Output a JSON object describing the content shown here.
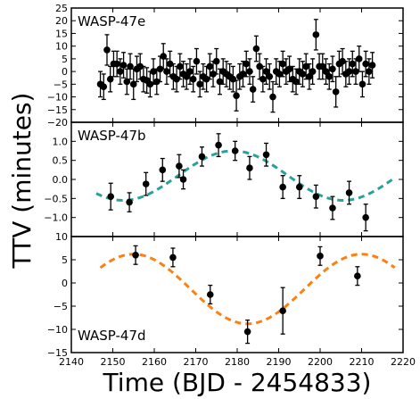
{
  "chart_data": {
    "type": "scatter",
    "xlabel": "Time (BJD - 2454833)",
    "ylabel": "TTV (minutes)",
    "xlim": [
      2140,
      2220
    ],
    "xticks": [
      2140,
      2150,
      2160,
      2170,
      2180,
      2190,
      2200,
      2210,
      2220
    ],
    "panels": [
      {
        "label": "WASP-47e",
        "ylim": [
          -20,
          25
        ],
        "yticks": [
          -20,
          -15,
          -10,
          -5,
          0,
          5,
          10,
          15,
          20,
          25
        ],
        "errorbar_color": "#000000",
        "points": [
          {
            "x": 2147.0,
            "y": -5,
            "err": 5
          },
          {
            "x": 2147.8,
            "y": -6,
            "err": 5
          },
          {
            "x": 2148.6,
            "y": 8.5,
            "err": 6
          },
          {
            "x": 2149.4,
            "y": -3,
            "err": 5
          },
          {
            "x": 2150.2,
            "y": 3,
            "err": 5
          },
          {
            "x": 2151.0,
            "y": 3,
            "err": 5
          },
          {
            "x": 2151.8,
            "y": 0,
            "err": 5
          },
          {
            "x": 2152.6,
            "y": 2.5,
            "err": 5
          },
          {
            "x": 2153.4,
            "y": -4,
            "err": 5
          },
          {
            "x": 2154.2,
            "y": 2,
            "err": 5
          },
          {
            "x": 2155.0,
            "y": -5,
            "err": 6
          },
          {
            "x": 2155.8,
            "y": 1,
            "err": 5
          },
          {
            "x": 2156.6,
            "y": 2,
            "err": 5
          },
          {
            "x": 2157.4,
            "y": -3,
            "err": 5
          },
          {
            "x": 2158.2,
            "y": -3.5,
            "err": 5
          },
          {
            "x": 2159.0,
            "y": -5,
            "err": 5
          },
          {
            "x": 2159.8,
            "y": 0,
            "err": 5
          },
          {
            "x": 2160.6,
            "y": -4,
            "err": 5
          },
          {
            "x": 2161.4,
            "y": 1,
            "err": 5
          },
          {
            "x": 2162.2,
            "y": 6,
            "err": 5
          },
          {
            "x": 2163.0,
            "y": 0,
            "err": 5
          },
          {
            "x": 2163.8,
            "y": 3,
            "err": 5
          },
          {
            "x": 2164.6,
            "y": -2,
            "err": 5
          },
          {
            "x": 2165.4,
            "y": -3,
            "err": 5
          },
          {
            "x": 2166.2,
            "y": 2,
            "err": 5
          },
          {
            "x": 2167.0,
            "y": -1,
            "err": 5
          },
          {
            "x": 2167.8,
            "y": -2,
            "err": 5
          },
          {
            "x": 2168.6,
            "y": 0,
            "err": 5
          },
          {
            "x": 2169.4,
            "y": -3,
            "err": 5
          },
          {
            "x": 2170.2,
            "y": 4,
            "err": 5
          },
          {
            "x": 2171.0,
            "y": -5,
            "err": 5
          },
          {
            "x": 2171.8,
            "y": -2,
            "err": 5
          },
          {
            "x": 2172.6,
            "y": -3,
            "err": 5
          },
          {
            "x": 2173.4,
            "y": 2,
            "err": 5
          },
          {
            "x": 2174.2,
            "y": -1,
            "err": 5
          },
          {
            "x": 2175.0,
            "y": 4,
            "err": 5
          },
          {
            "x": 2175.8,
            "y": -4,
            "err": 5
          },
          {
            "x": 2176.6,
            "y": 0,
            "err": 5
          },
          {
            "x": 2177.4,
            "y": -1,
            "err": 5
          },
          {
            "x": 2178.2,
            "y": -2,
            "err": 5
          },
          {
            "x": 2179.0,
            "y": -3,
            "err": 5
          },
          {
            "x": 2179.8,
            "y": -9.5,
            "err": 6
          },
          {
            "x": 2180.6,
            "y": -2,
            "err": 5
          },
          {
            "x": 2181.4,
            "y": -1,
            "err": 5
          },
          {
            "x": 2182.2,
            "y": 3,
            "err": 5
          },
          {
            "x": 2183.0,
            "y": 0,
            "err": 5
          },
          {
            "x": 2183.8,
            "y": -7,
            "err": 5
          },
          {
            "x": 2184.6,
            "y": 9,
            "err": 5
          },
          {
            "x": 2185.4,
            "y": 2,
            "err": 5
          },
          {
            "x": 2186.2,
            "y": -3,
            "err": 5
          },
          {
            "x": 2187.0,
            "y": 0,
            "err": 5
          },
          {
            "x": 2187.8,
            "y": -2,
            "err": 5
          },
          {
            "x": 2188.6,
            "y": -10,
            "err": 6
          },
          {
            "x": 2189.4,
            "y": 0,
            "err": 5
          },
          {
            "x": 2190.2,
            "y": -1,
            "err": 5
          },
          {
            "x": 2191.0,
            "y": 3,
            "err": 5
          },
          {
            "x": 2191.8,
            "y": 0,
            "err": 5
          },
          {
            "x": 2192.6,
            "y": 1,
            "err": 5
          },
          {
            "x": 2193.4,
            "y": -3,
            "err": 5
          },
          {
            "x": 2194.2,
            "y": -4,
            "err": 5
          },
          {
            "x": 2195.0,
            "y": 0,
            "err": 5
          },
          {
            "x": 2195.8,
            "y": -1,
            "err": 5
          },
          {
            "x": 2196.6,
            "y": 2,
            "err": 5
          },
          {
            "x": 2197.4,
            "y": -2,
            "err": 5
          },
          {
            "x": 2198.2,
            "y": 0,
            "err": 5
          },
          {
            "x": 2199.0,
            "y": 14.5,
            "err": 6
          },
          {
            "x": 2199.8,
            "y": 2,
            "err": 5
          },
          {
            "x": 2200.6,
            "y": 2,
            "err": 5
          },
          {
            "x": 2201.4,
            "y": 0,
            "err": 5
          },
          {
            "x": 2202.2,
            "y": -2,
            "err": 5
          },
          {
            "x": 2203.0,
            "y": 1,
            "err": 5
          },
          {
            "x": 2203.8,
            "y": -8,
            "err": 6
          },
          {
            "x": 2204.6,
            "y": 3,
            "err": 5
          },
          {
            "x": 2205.4,
            "y": 4,
            "err": 5
          },
          {
            "x": 2206.2,
            "y": -1,
            "err": 5
          },
          {
            "x": 2207.0,
            "y": 0,
            "err": 5
          },
          {
            "x": 2207.8,
            "y": 3,
            "err": 5
          },
          {
            "x": 2208.6,
            "y": 0,
            "err": 5
          },
          {
            "x": 2209.4,
            "y": 5,
            "err": 5
          },
          {
            "x": 2210.2,
            "y": -5,
            "err": 5
          },
          {
            "x": 2211.0,
            "y": 3,
            "err": 5
          },
          {
            "x": 2211.8,
            "y": 0,
            "err": 5
          },
          {
            "x": 2212.6,
            "y": 2.5,
            "err": 5
          }
        ]
      },
      {
        "label": "WASP-47b",
        "ylim": [
          -1.5,
          1.5
        ],
        "yticks": [
          -1.0,
          -0.5,
          0.0,
          0.5,
          1.0
        ],
        "model_color": "#2aa198",
        "model": {
          "amplitude": 0.65,
          "period": 53,
          "peak_x": 2179,
          "offset": 0.1,
          "xrange": [
            2146,
            2218
          ]
        },
        "points": [
          {
            "x": 2149.5,
            "y": -0.45,
            "err": 0.35
          },
          {
            "x": 2154,
            "y": -0.6,
            "err": 0.25
          },
          {
            "x": 2158,
            "y": -0.12,
            "err": 0.3
          },
          {
            "x": 2162,
            "y": 0.25,
            "err": 0.3
          },
          {
            "x": 2166,
            "y": 0.35,
            "err": 0.3
          },
          {
            "x": 2167,
            "y": 0.0,
            "err": 0.25
          },
          {
            "x": 2171.5,
            "y": 0.6,
            "err": 0.25
          },
          {
            "x": 2175.5,
            "y": 0.9,
            "err": 0.3
          },
          {
            "x": 2179.5,
            "y": 0.75,
            "err": 0.25
          },
          {
            "x": 2183,
            "y": 0.3,
            "err": 0.3
          },
          {
            "x": 2187,
            "y": 0.65,
            "err": 0.3
          },
          {
            "x": 2191,
            "y": -0.2,
            "err": 0.3
          },
          {
            "x": 2195,
            "y": -0.2,
            "err": 0.3
          },
          {
            "x": 2199,
            "y": -0.45,
            "err": 0.3
          },
          {
            "x": 2203,
            "y": -0.75,
            "err": 0.3
          },
          {
            "x": 2207,
            "y": -0.35,
            "err": 0.3
          },
          {
            "x": 2211,
            "y": -1.0,
            "err": 0.35
          }
        ]
      },
      {
        "label": "WASP-47d",
        "ylim": [
          -15,
          10
        ],
        "yticks": [
          -15,
          -10,
          -5,
          0,
          5,
          10
        ],
        "model_color": "#ff7f0e",
        "model": {
          "amplitude": 7.5,
          "period": 55,
          "peak_x": 2155,
          "offset": -1.3,
          "xrange": [
            2147,
            2218
          ]
        },
        "points": [
          {
            "x": 2155.5,
            "y": 6,
            "err": 2
          },
          {
            "x": 2164.5,
            "y": 5.5,
            "err": 2
          },
          {
            "x": 2173.5,
            "y": -2.5,
            "err": 2
          },
          {
            "x": 2182.5,
            "y": -10.5,
            "err": 2.5
          },
          {
            "x": 2191,
            "y": -6,
            "err": 5
          },
          {
            "x": 2200,
            "y": 5.8,
            "err": 2
          },
          {
            "x": 2209,
            "y": 1.5,
            "err": 2
          }
        ]
      }
    ]
  }
}
